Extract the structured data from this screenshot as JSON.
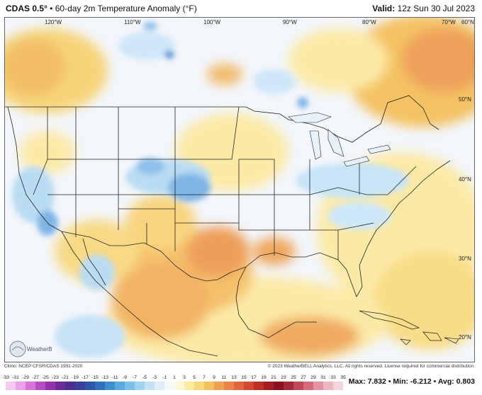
{
  "header": {
    "model": "CDAS 0.5°",
    "separator": "•",
    "product": "60-day 2m Temperature Anomaly (°F)",
    "valid_label": "Valid:",
    "valid_time": "12z Sun 30 Jul 2023"
  },
  "map": {
    "lon_labels": [
      "120°W",
      "110°W",
      "100°W",
      "90°W",
      "80°W",
      "70°W",
      "60°N"
    ],
    "lat_labels": [
      "50°N",
      "40°N",
      "30°N",
      "20°N"
    ]
  },
  "footer": {
    "climo": "Climo: NCEP CFSR/CDAS 1991-2020",
    "copyright": "© 2023 WeatherBELL Analytics, LLC. All rights reserved. License required for commercial distribution.",
    "logo_text": "WeatherBELL"
  },
  "colorbar": {
    "ticks": [
      "-33",
      "-31",
      "-29",
      "-27",
      "-25",
      "-23",
      "-21",
      "-19",
      "-17",
      "-15",
      "-13",
      "-11",
      "-9",
      "-7",
      "-5",
      "-3",
      "-1",
      "1",
      "3",
      "5",
      "7",
      "9",
      "11",
      "13",
      "15",
      "17",
      "19",
      "21",
      "23",
      "25",
      "27",
      "29",
      "31",
      "33",
      "35"
    ],
    "colors": [
      "#f7c8f0",
      "#eaa0e6",
      "#d874d8",
      "#b84cc4",
      "#9530ae",
      "#6e2a9b",
      "#4e2d8f",
      "#3a3f9c",
      "#2f56ad",
      "#2d71bf",
      "#3c8fd1",
      "#5aa9e0",
      "#7bc0ea",
      "#9fd3f1",
      "#c3e3f5",
      "#e0eef8",
      "#f6f8fb",
      "#fdf8d8",
      "#fbec9f",
      "#f8d978",
      "#f4c060",
      "#efa250",
      "#e98444",
      "#df653a",
      "#d24830",
      "#bd3027",
      "#a41d20",
      "#8a121c",
      "#a22a3a",
      "#c04858",
      "#d66c7a",
      "#e593a0",
      "#eeb6bf",
      "#f5d4da"
    ]
  },
  "stats": {
    "max_label": "Max:",
    "max_value": "7.832",
    "min_label": "Min:",
    "min_value": "-6.212",
    "avg_label": "Avg:",
    "avg_value": "0.803"
  }
}
